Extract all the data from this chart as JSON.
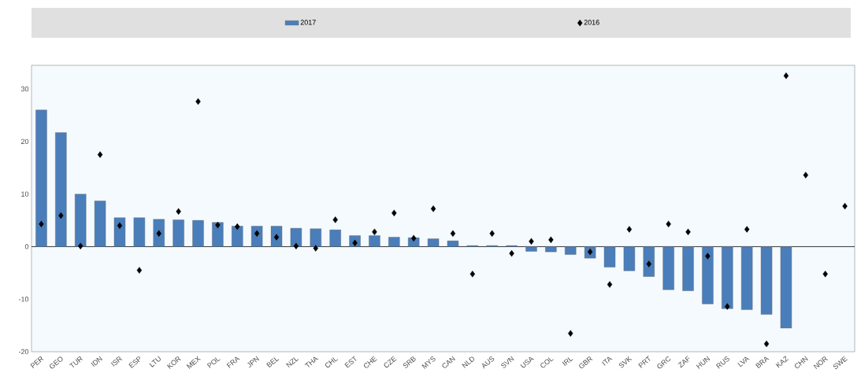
{
  "chart_data": {
    "type": "bar",
    "categories": [
      "PER",
      "GEO",
      "TUR",
      "IDN",
      "ISR",
      "ESP",
      "LTU",
      "KOR",
      "MEX",
      "POL",
      "FRA",
      "JPN",
      "BEL",
      "NZL",
      "THA",
      "CHL",
      "EST",
      "CHE",
      "CZE",
      "SRB",
      "MYS",
      "CAN",
      "NLD",
      "AUS",
      "SVN",
      "USA",
      "COL",
      "IRL",
      "GBR",
      "ITA",
      "SVK",
      "PRT",
      "GRC",
      "ZAF",
      "HUN",
      "RUS",
      "LVA",
      "BRA",
      "KAZ",
      "CHN",
      "NOR",
      "SWE"
    ],
    "series": [
      {
        "name": "2017",
        "color": "#4a7ebb",
        "values": [
          26,
          21.7,
          10,
          8.7,
          5.5,
          5.5,
          5.2,
          5.1,
          5.0,
          4.6,
          3.9,
          3.9,
          3.9,
          3.5,
          3.4,
          3.2,
          2.1,
          2.1,
          1.8,
          1.7,
          1.5,
          1.1,
          0.2,
          0.2,
          0.2,
          -0.9,
          -1.0,
          -1.5,
          -2.2,
          -3.9,
          -4.6,
          -5.7,
          -8.2,
          -8.4,
          -10.9,
          -11.8,
          -12.0,
          -12.9,
          -15.5,
          null,
          null,
          null
        ]
      },
      {
        "name": "2016",
        "type": "scatter",
        "color": "#000000",
        "values": [
          4.3,
          5.9,
          0.1,
          17.5,
          4.0,
          -4.5,
          2.5,
          6.7,
          27.6,
          4.1,
          3.8,
          2.5,
          1.8,
          0.1,
          -0.3,
          5.1,
          0.7,
          2.8,
          6.4,
          1.6,
          7.2,
          2.5,
          -5.2,
          2.5,
          -1.3,
          1.0,
          1.3,
          -16.5,
          -1.0,
          -7.2,
          3.3,
          -3.3,
          4.3,
          2.8,
          -1.8,
          -11.4,
          3.3,
          -18.5,
          32.5,
          13.6,
          -5.2,
          7.7
        ]
      }
    ],
    "ylim": [
      -20,
      34.5
    ],
    "yticks": [
      -20,
      -10,
      0,
      10,
      20,
      30
    ],
    "ref_lines": [
      {
        "axis": "y",
        "value": 0
      }
    ],
    "legend": "top",
    "marker": "diamond"
  }
}
